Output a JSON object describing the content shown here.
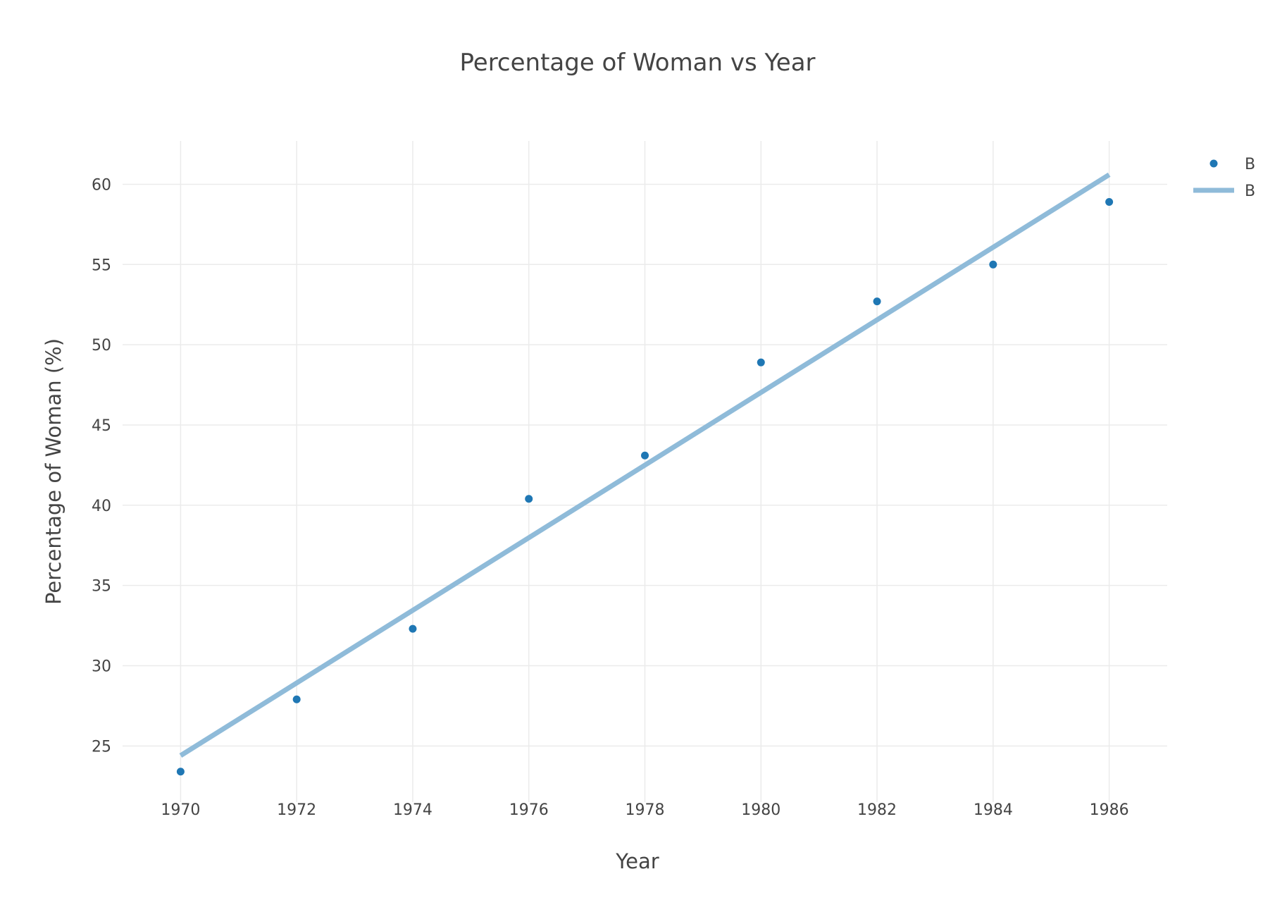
{
  "chart_data": {
    "type": "scatter",
    "title": "Percentage of Woman vs Year",
    "xlabel": "Year",
    "ylabel": "Percentage of Woman (%)",
    "xlim": [
      1969,
      1987
    ],
    "ylim": [
      21.5,
      62.7
    ],
    "x_ticks": [
      1970,
      1972,
      1974,
      1976,
      1978,
      1980,
      1982,
      1984,
      1986
    ],
    "y_ticks": [
      25,
      30,
      35,
      40,
      45,
      50,
      55,
      60
    ],
    "grid": true,
    "legend_position": "top-right",
    "series": [
      {
        "name": "B",
        "mode": "markers",
        "color": "#1f77b4",
        "x": [
          1970,
          1972,
          1974,
          1976,
          1978,
          1980,
          1982,
          1984,
          1986
        ],
        "y": [
          23.4,
          27.9,
          32.3,
          40.4,
          43.1,
          48.9,
          52.7,
          55.0,
          58.9
        ]
      },
      {
        "name": "B",
        "mode": "lines",
        "color": "#8fbbd9",
        "x": [
          1970,
          1986
        ],
        "y": [
          24.4,
          60.6
        ]
      }
    ]
  }
}
